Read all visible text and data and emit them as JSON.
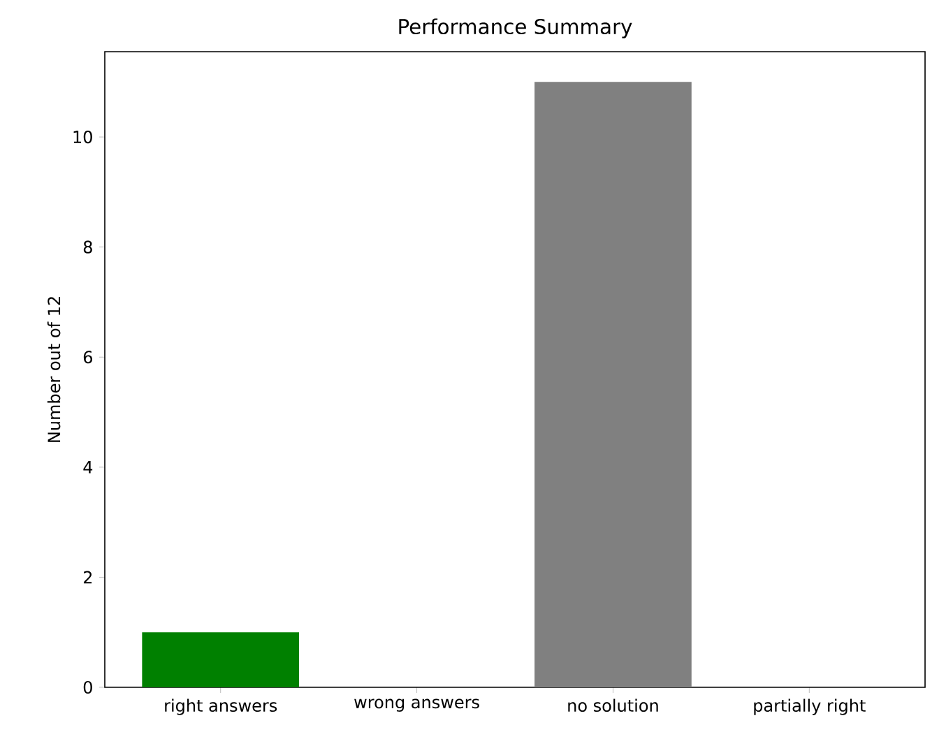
{
  "chart_data": {
    "type": "bar",
    "title": "Performance Summary",
    "ylabel": "Number out of 12",
    "categories": [
      "right answers",
      "wrong answers",
      "no solution",
      "partially right"
    ],
    "values": [
      1,
      0,
      11,
      0
    ],
    "colors": [
      "#008000",
      "#ff0000",
      "#808080",
      "#ffa500"
    ],
    "ylim": [
      0,
      11.55
    ],
    "yticks": [
      0,
      2,
      4,
      6,
      8,
      10
    ]
  }
}
